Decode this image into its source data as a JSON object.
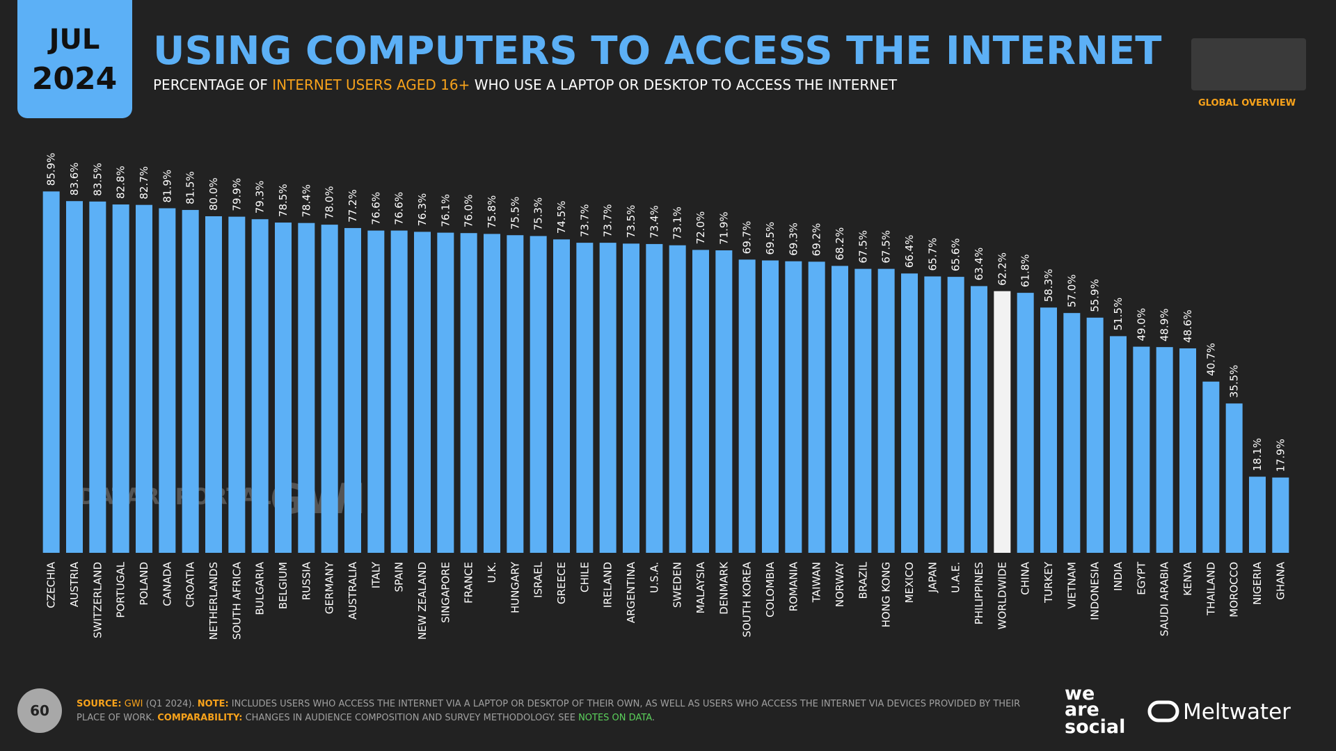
{
  "chart_data": {
    "type": "bar",
    "date_box": {
      "month": "JUL",
      "year": "2024"
    },
    "title": "USING COMPUTERS TO ACCESS THE INTERNET",
    "subtitle": [
      "PERCENTAGE OF ",
      "INTERNET USERS AGED 16+",
      " WHO USE A LAPTOP OR DESKTOP TO ACCESS THE INTERNET"
    ],
    "section": "GLOBAL OVERVIEW",
    "categories": [
      "CZECHIA",
      "AUSTRIA",
      "SWITZERLAND",
      "PORTUGAL",
      "POLAND",
      "CANADA",
      "CROATIA",
      "NETHERLANDS",
      "SOUTH AFRICA",
      "BULGARIA",
      "BELGIUM",
      "RUSSIA",
      "GERMANY",
      "AUSTRALIA",
      "ITALY",
      "SPAIN",
      "NEW ZEALAND",
      "SINGAPORE",
      "FRANCE",
      "U.K.",
      "HUNGARY",
      "ISRAEL",
      "GREECE",
      "CHILE",
      "IRELAND",
      "ARGENTINA",
      "U.S.A.",
      "SWEDEN",
      "MALAYSIA",
      "DENMARK",
      "SOUTH KOREA",
      "COLOMBIA",
      "ROMANIA",
      "TAIWAN",
      "NORWAY",
      "BRAZIL",
      "HONG KONG",
      "MEXICO",
      "JAPAN",
      "U.A.E.",
      "PHILIPPINES",
      "WORLDWIDE",
      "CHINA",
      "TURKEY",
      "VIETNAM",
      "INDONESIA",
      "INDIA",
      "EGYPT",
      "SAUDI ARABIA",
      "KENYA",
      "THAILAND",
      "MOROCCO",
      "NIGERIA",
      "GHANA"
    ],
    "values": [
      85.9,
      83.6,
      83.5,
      82.8,
      82.7,
      81.9,
      81.5,
      80.0,
      79.9,
      79.3,
      78.5,
      78.4,
      78.0,
      77.2,
      76.6,
      76.6,
      76.3,
      76.1,
      76.0,
      75.8,
      75.5,
      75.3,
      74.5,
      73.7,
      73.7,
      73.5,
      73.4,
      73.1,
      72.0,
      71.9,
      69.7,
      69.5,
      69.3,
      69.2,
      68.2,
      67.5,
      67.5,
      66.4,
      65.7,
      65.6,
      63.4,
      62.2,
      61.8,
      58.3,
      57.0,
      55.9,
      51.5,
      49.0,
      48.9,
      48.6,
      40.7,
      35.5,
      18.1,
      17.9
    ],
    "value_labels": [
      "85.9%",
      "83.6%",
      "83.5%",
      "82.8%",
      "82.7%",
      "81.9%",
      "81.5%",
      "80.0%",
      "79.9%",
      "79.3%",
      "78.5%",
      "78.4%",
      "78.0%",
      "77.2%",
      "76.6%",
      "76.6%",
      "76.3%",
      "76.1%",
      "76.0%",
      "75.8%",
      "75.5%",
      "75.3%",
      "74.5%",
      "73.7%",
      "73.7%",
      "73.5%",
      "73.4%",
      "73.1%",
      "72.0%",
      "71.9%",
      "69.7%",
      "69.5%",
      "69.3%",
      "69.2%",
      "68.2%",
      "67.5%",
      "67.5%",
      "66.4%",
      "65.7%",
      "65.6%",
      "63.4%",
      "62.2%",
      "61.8%",
      "58.3%",
      "57.0%",
      "55.9%",
      "51.5%",
      "49.0%",
      "48.9%",
      "48.6%",
      "40.7%",
      "35.5%",
      "18.1%",
      "17.9%"
    ],
    "color": "#5cb0f6",
    "highlight": {
      "category": "WORLDWIDE",
      "color": "#f2f2f2"
    },
    "watermarks": [
      "DATAREPORTAL",
      "GWI."
    ]
  },
  "footer": {
    "page": "60",
    "segments": [
      "SOURCE:",
      " GWI",
      " (Q1 2024). ",
      "NOTE:",
      " INCLUDES USERS WHO ACCESS THE INTERNET VIA A LAPTOP OR DESKTOP OF THEIR OWN, AS WELL AS USERS WHO ACCESS THE INTERNET VIA DEVICES PROVIDED BY THEIR",
      "PLACE OF WORK. ",
      "COMPARABILITY:",
      " CHANGES IN AUDIENCE COMPOSITION AND SURVEY METHODOLOGY. SEE ",
      "NOTES ON DATA",
      "."
    ],
    "logos": [
      "we",
      "are",
      "social",
      "Meltwater"
    ]
  }
}
